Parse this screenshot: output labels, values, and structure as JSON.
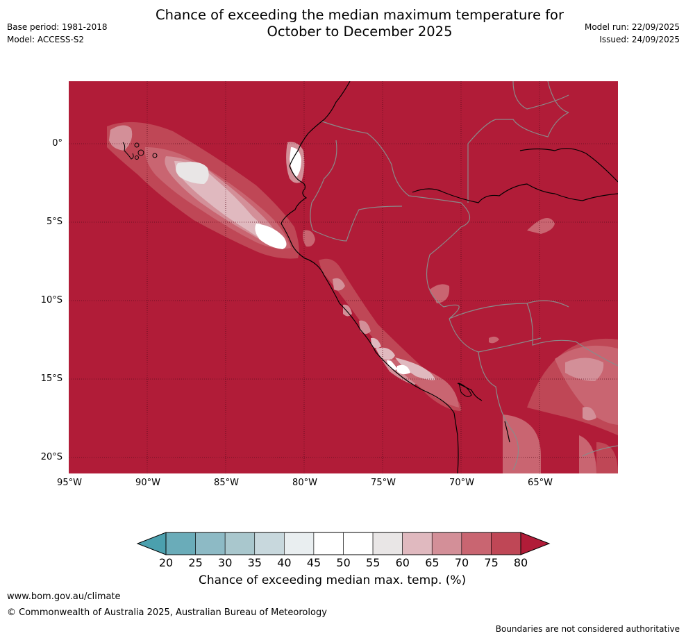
{
  "header": {
    "title_line1": "Chance of exceeding the median maximum temperature for",
    "title_line2": "October to December 2025",
    "base_period": "Base period: 1981-2018",
    "model": "Model: ACCESS-S2",
    "model_run": "Model run: 22/09/2025",
    "issued": "Issued: 24/09/2025"
  },
  "map": {
    "background_color": "#b11c38",
    "lat_labels": [
      "0°",
      "5°S",
      "10°S",
      "15°S",
      "20°S"
    ],
    "lon_labels": [
      "95°W",
      "90°W",
      "85°W",
      "80°W",
      "75°W",
      "70°W",
      "65°W"
    ],
    "gridlines": "dotted"
  },
  "colorbar": {
    "ticks": [
      "20",
      "25",
      "30",
      "35",
      "40",
      "45",
      "50",
      "55",
      "60",
      "65",
      "70",
      "75",
      "80"
    ],
    "colors": [
      "#6aacb9",
      "#8dbac5",
      "#a9c7cd",
      "#c8d8dd",
      "#e9eef0",
      "#ffffff",
      "#ffffff",
      "#e9e6e6",
      "#e0b9bf",
      "#d38f98",
      "#c96571",
      "#bf4756"
    ],
    "under_color": "#4ba0ae",
    "over_color": "#b11c38",
    "label": "Chance of exceeding median max. temp. (%)"
  },
  "footer": {
    "website": "www.bom.gov.au/climate",
    "copyright": "© Commonwealth of Australia 2025, Australian Bureau of Meteorology",
    "disclaimer": "Boundaries are not considered authoritative"
  }
}
